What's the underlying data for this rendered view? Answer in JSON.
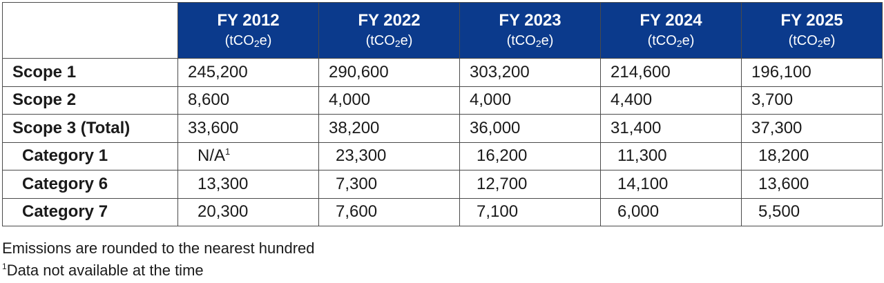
{
  "header": {
    "corner": "",
    "unit_prefix": "(tCO",
    "unit_sub": "2",
    "unit_suffix": "e)",
    "years": [
      "FY 2012",
      "FY 2022",
      "FY 2023",
      "FY 2024",
      "FY 2025"
    ]
  },
  "rows": [
    {
      "label": "Scope 1",
      "values": [
        "245,200",
        "290,600",
        "303,200",
        "214,600",
        "196,100"
      ]
    },
    {
      "label": "Scope 2",
      "values": [
        "8,600",
        "4,000",
        "4,000",
        "4,400",
        "3,700"
      ]
    },
    {
      "label": "Scope 3 (Total)",
      "values": [
        "33,600",
        "38,200",
        "36,000",
        "31,400",
        "37,300"
      ]
    },
    {
      "label": "Category 1",
      "values": [
        "N/A",
        "23,300",
        "16,200",
        "11,300",
        "18,200"
      ]
    },
    {
      "label": "Category 6",
      "values": [
        "13,300",
        "7,300",
        "12,700",
        "14,100",
        "13,600"
      ]
    },
    {
      "label": "Category 7",
      "values": [
        "20,300",
        "7,600",
        "7,100",
        "6,000",
        "5,500"
      ]
    }
  ],
  "footnote_marker": "1",
  "notes": {
    "rounding": "Emissions are rounded to the nearest hundred",
    "footnote_marker": "1",
    "footnote_text": "Data not available at the time"
  }
}
